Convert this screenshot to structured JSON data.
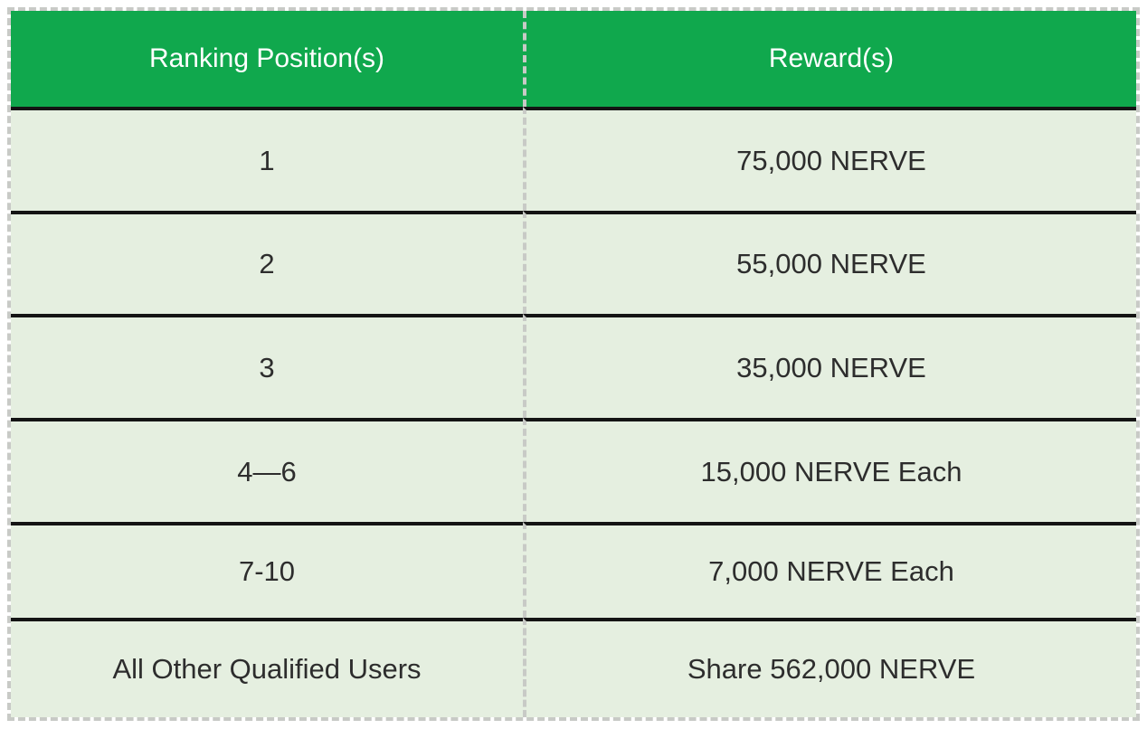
{
  "table": {
    "columns": [
      "Ranking Position(s)",
      "Reward(s)"
    ],
    "rows": [
      {
        "position": "1",
        "reward": "75,000 NERVE"
      },
      {
        "position": "2",
        "reward": "55,000 NERVE"
      },
      {
        "position": "3",
        "reward": "35,000 NERVE"
      },
      {
        "position": "4—6",
        "reward": "15,000 NERVE Each"
      },
      {
        "position": "7-10",
        "reward": "7,000 NERVE Each"
      },
      {
        "position": "All Other Qualified Users",
        "reward": "Share 562,000 NERVE"
      }
    ],
    "colors": {
      "header_bg": "#10A84D",
      "row_bg": "#E5EFE0",
      "header_text": "#FFFFFF",
      "body_text": "#2D2D2D",
      "row_line": "#141414",
      "dash": "#C8CAC6",
      "page_bg": "#FFFFFF"
    }
  },
  "chart_data": {
    "type": "table",
    "columns": [
      "Ranking Position(s)",
      "Reward(s)"
    ],
    "rows": [
      [
        "1",
        "75,000 NERVE"
      ],
      [
        "2",
        "55,000 NERVE"
      ],
      [
        "3",
        "35,000 NERVE"
      ],
      [
        "4—6",
        "15,000 NERVE Each"
      ],
      [
        "7-10",
        "7,000 NERVE Each"
      ],
      [
        "All Other Qualified Users",
        "Share 562,000 NERVE"
      ]
    ],
    "layout": {
      "header_fill": "#10A84D",
      "body_fill": "#E5EFE0",
      "outer_border": "dashed",
      "row_separator": "solid",
      "column_separator": "dashed"
    }
  }
}
